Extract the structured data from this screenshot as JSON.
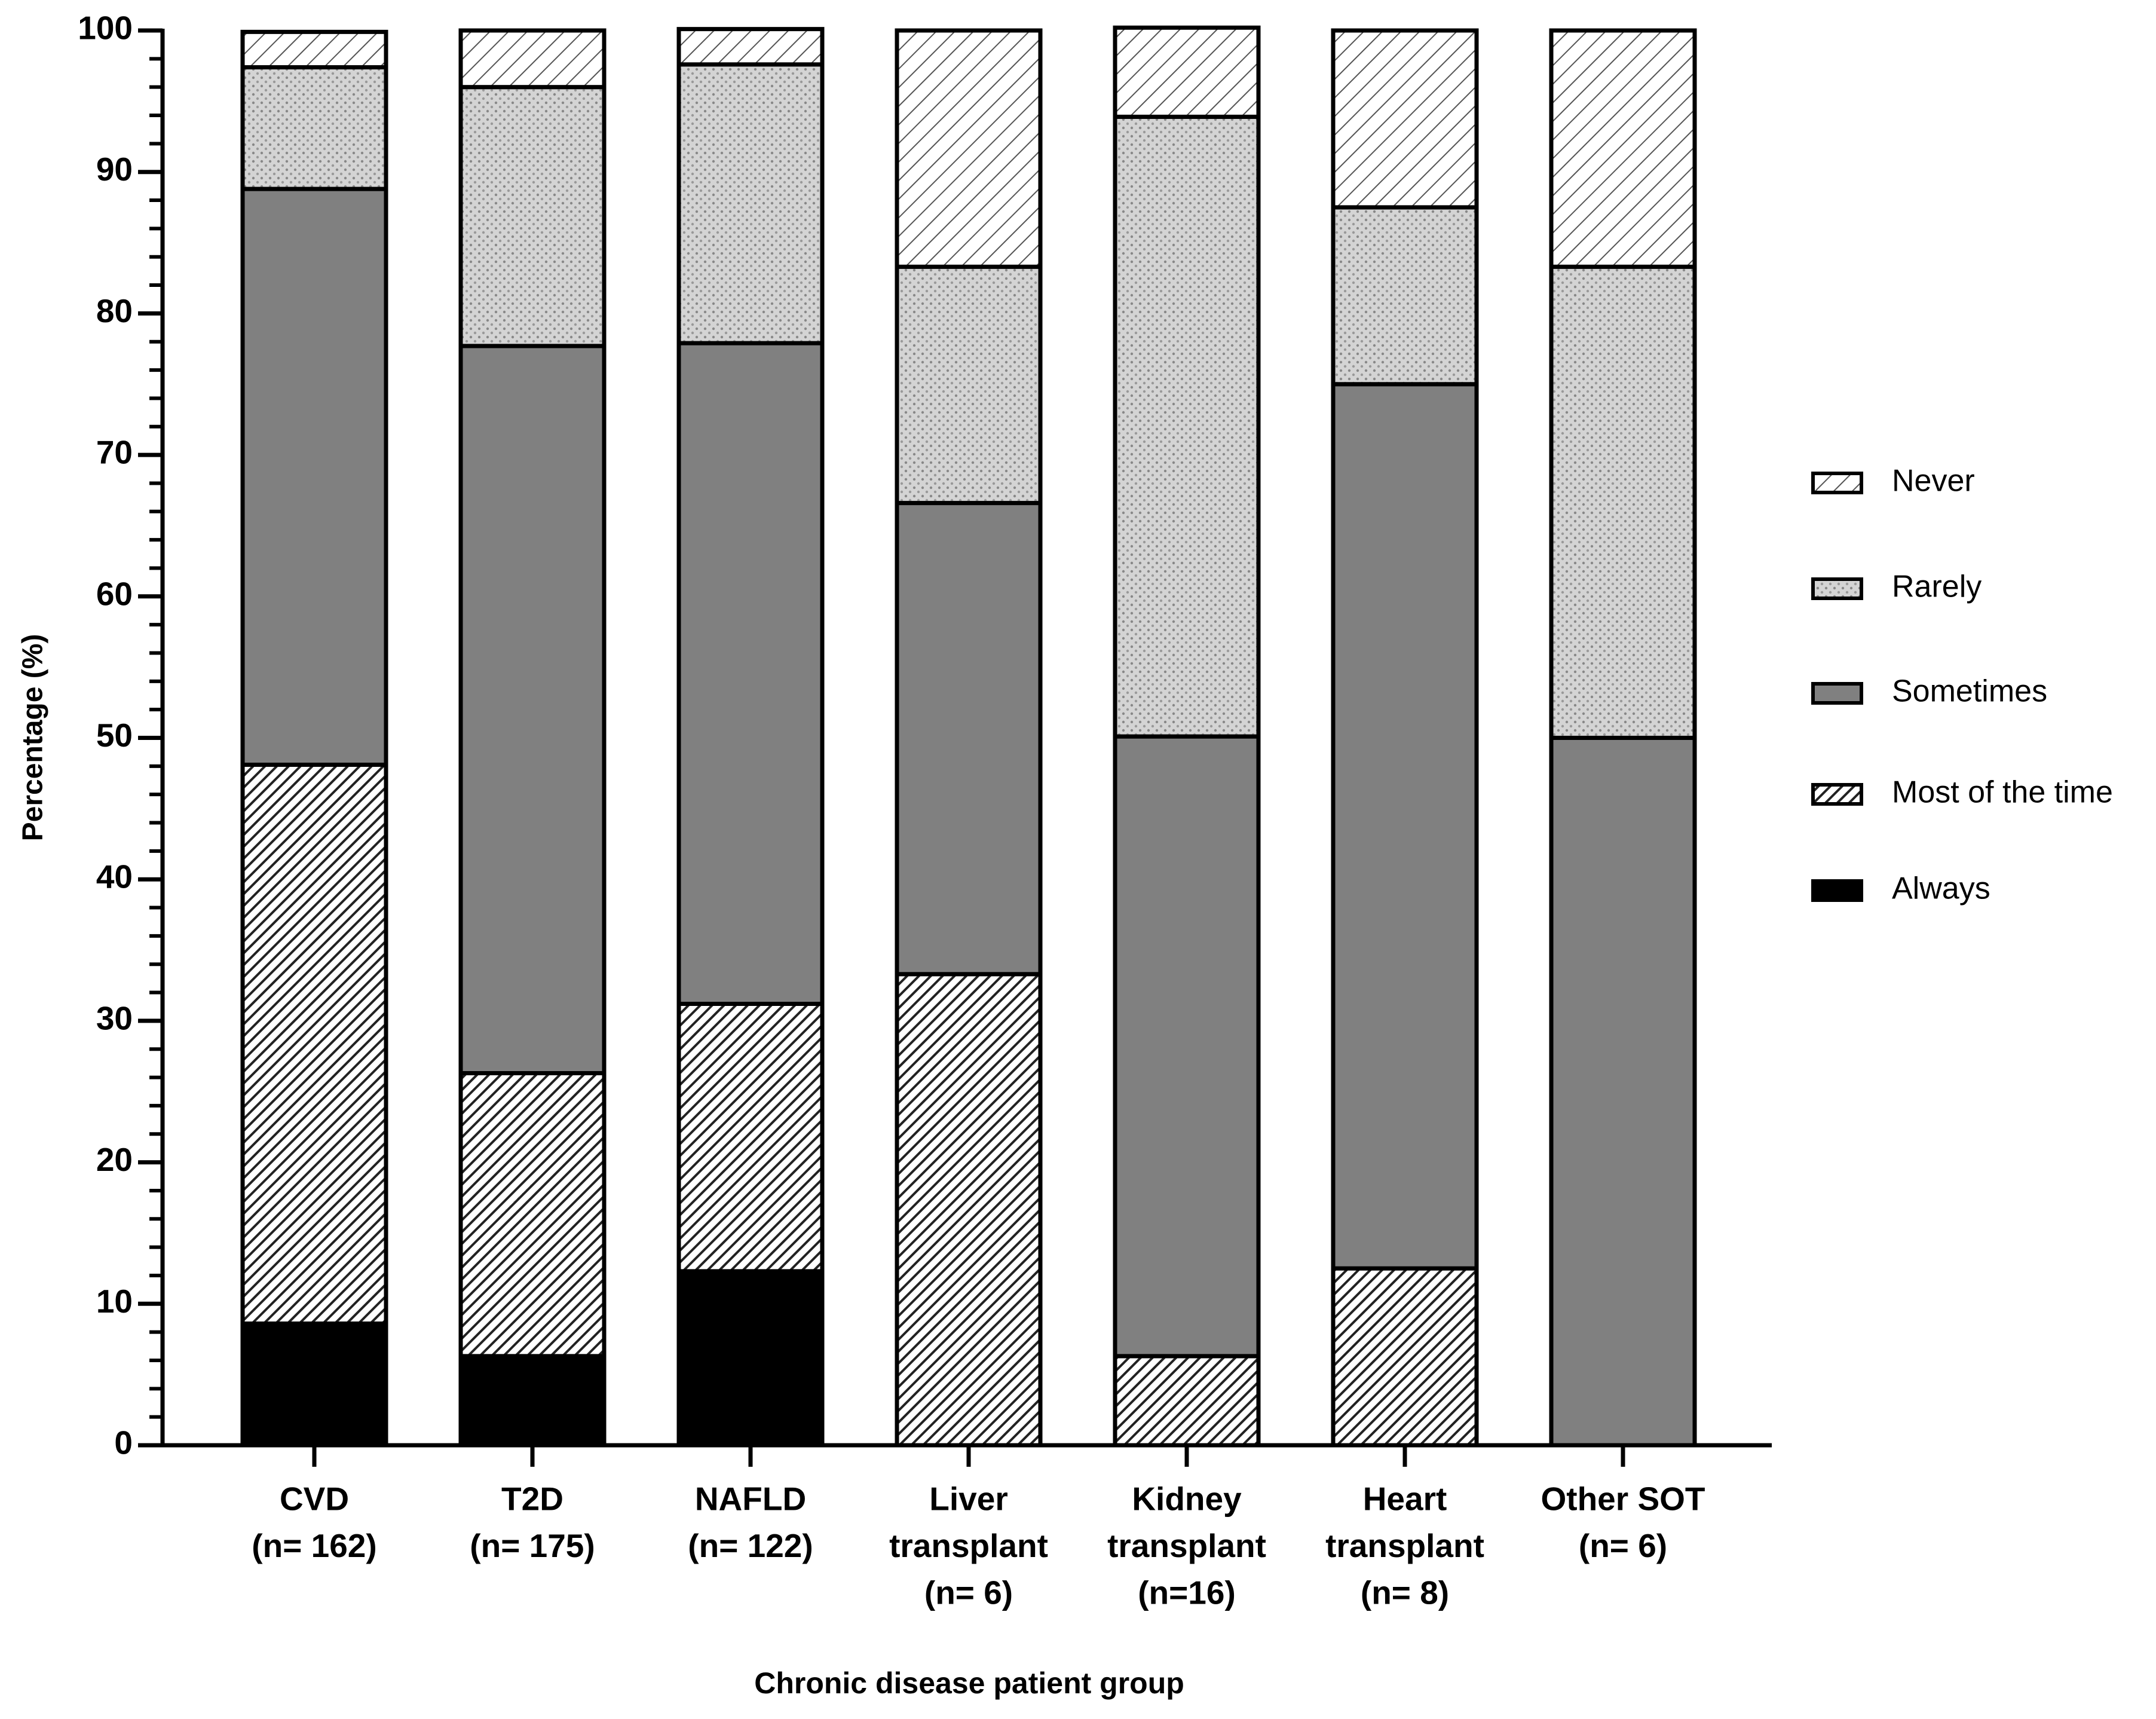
{
  "chart_data": {
    "type": "stacked_bar",
    "ylabel": "Percentage (%)",
    "xlabel": "Chronic disease patient group",
    "categories": [
      [
        "CVD",
        "(n= 162)"
      ],
      [
        "T2D",
        "(n= 175)"
      ],
      [
        "NAFLD",
        "(n= 122)"
      ],
      [
        "Liver",
        "transplant",
        "(n= 6)"
      ],
      [
        "Kidney",
        "transplant",
        "(n=16)"
      ],
      [
        "Heart",
        "transplant",
        "(n= 8)"
      ],
      [
        "Other SOT",
        "(n= 6)"
      ]
    ],
    "series": [
      {
        "name": "Always",
        "color": "#000000",
        "pattern": "solid",
        "values": [
          8.6,
          6.3,
          12.3,
          0,
          0,
          0,
          0
        ]
      },
      {
        "name": "Most of the time",
        "color": "#303030",
        "pattern": "hatch-dense",
        "values": [
          39.5,
          20.0,
          18.9,
          33.3,
          6.3,
          12.5,
          0
        ]
      },
      {
        "name": "Sometimes",
        "color": "#808080",
        "pattern": "solid",
        "values": [
          40.7,
          51.4,
          46.7,
          33.3,
          43.8,
          62.5,
          50.0
        ]
      },
      {
        "name": "Rarely",
        "color": "#c8c8c8",
        "pattern": "dots",
        "values": [
          8.6,
          18.3,
          19.7,
          16.7,
          43.8,
          12.5,
          33.3
        ]
      },
      {
        "name": "Never",
        "color": "#ffffff",
        "pattern": "hatch-light",
        "values": [
          2.5,
          4.0,
          2.5,
          16.7,
          6.3,
          12.5,
          16.7
        ]
      }
    ],
    "ylim": [
      0,
      100
    ],
    "yticks": [
      0,
      10,
      20,
      30,
      40,
      50,
      60,
      70,
      80,
      90,
      100
    ],
    "minor_tick_step": 2,
    "legend": "right"
  }
}
